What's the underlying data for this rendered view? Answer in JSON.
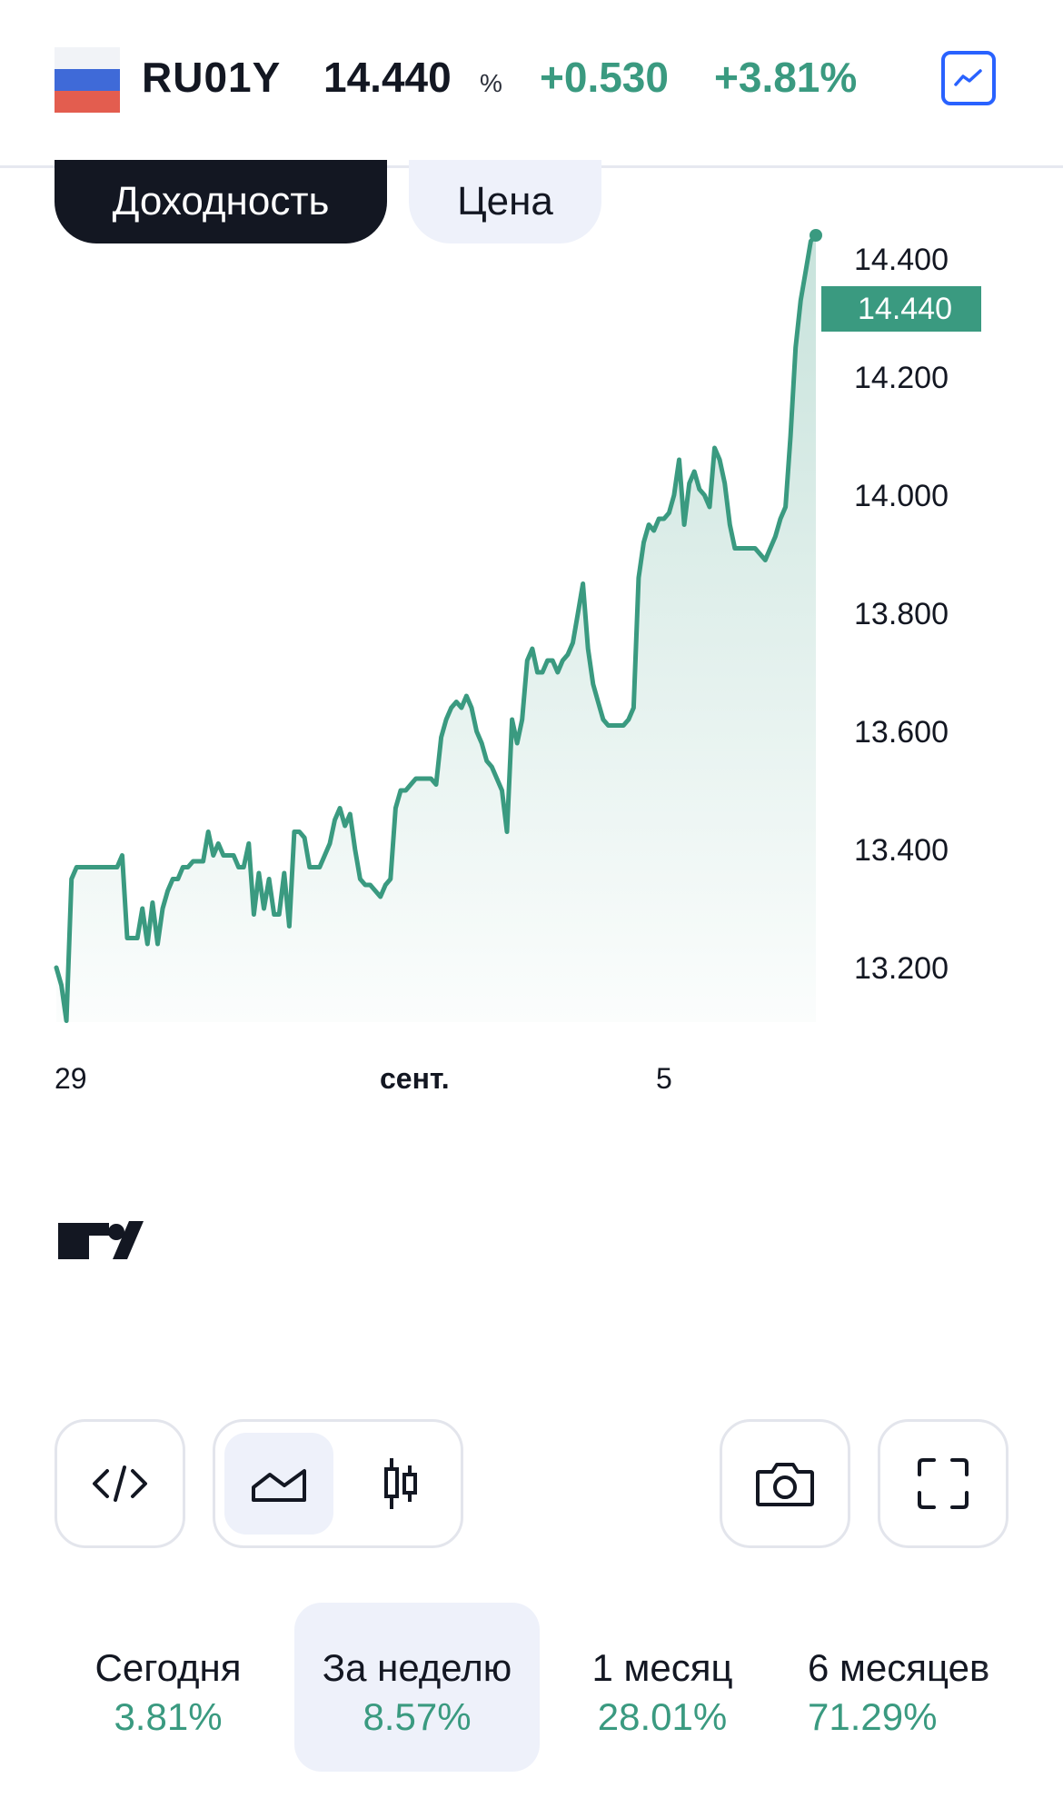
{
  "header": {
    "symbol": "RU01Y",
    "last": "14.440",
    "unit": "%",
    "change": "+0.530",
    "change_pct": "+3.81%"
  },
  "tabs": [
    {
      "label": "Доходность",
      "active": true
    },
    {
      "label": "Цена",
      "active": false
    }
  ],
  "chart_data": {
    "type": "area",
    "x_ticks": [
      "29",
      "сент.",
      "5"
    ],
    "y_ticks": [
      "13.200",
      "13.400",
      "13.600",
      "13.800",
      "14.000",
      "14.200",
      "14.400"
    ],
    "last_value_label": "14.440",
    "ylim": [
      13.06,
      14.48
    ],
    "line_color": "#3a9a80",
    "values": [
      13.2,
      13.17,
      13.11,
      13.35,
      13.37,
      13.37,
      13.37,
      13.37,
      13.37,
      13.37,
      13.37,
      13.37,
      13.37,
      13.39,
      13.25,
      13.25,
      13.25,
      13.3,
      13.24,
      13.31,
      13.24,
      13.3,
      13.33,
      13.35,
      13.35,
      13.37,
      13.37,
      13.38,
      13.38,
      13.38,
      13.43,
      13.39,
      13.41,
      13.39,
      13.39,
      13.39,
      13.37,
      13.37,
      13.41,
      13.29,
      13.36,
      13.3,
      13.35,
      13.29,
      13.29,
      13.36,
      13.27,
      13.43,
      13.43,
      13.42,
      13.37,
      13.37,
      13.37,
      13.39,
      13.41,
      13.45,
      13.47,
      13.44,
      13.46,
      13.4,
      13.35,
      13.34,
      13.34,
      13.33,
      13.32,
      13.34,
      13.35,
      13.47,
      13.5,
      13.5,
      13.51,
      13.52,
      13.52,
      13.52,
      13.52,
      13.51,
      13.59,
      13.62,
      13.64,
      13.65,
      13.64,
      13.66,
      13.64,
      13.6,
      13.58,
      13.55,
      13.54,
      13.52,
      13.5,
      13.43,
      13.62,
      13.58,
      13.62,
      13.72,
      13.74,
      13.7,
      13.7,
      13.72,
      13.72,
      13.7,
      13.72,
      13.73,
      13.75,
      13.8,
      13.85,
      13.74,
      13.68,
      13.65,
      13.62,
      13.61,
      13.61,
      13.61,
      13.61,
      13.62,
      13.64,
      13.86,
      13.92,
      13.95,
      13.94,
      13.96,
      13.96,
      13.97,
      14.0,
      14.06,
      13.95,
      14.02,
      14.04,
      14.01,
      14.0,
      13.98,
      14.08,
      14.06,
      14.02,
      13.95,
      13.91,
      13.91,
      13.91,
      13.91,
      13.91,
      13.9,
      13.89,
      13.91,
      13.93,
      13.96,
      13.98,
      14.1,
      14.25,
      14.33,
      14.38,
      14.43,
      14.44
    ]
  },
  "toolbar": {
    "embed_icon": "code-icon",
    "area_icon": "area-chart-icon",
    "candle_icon": "candles-icon",
    "screenshot_icon": "camera-icon",
    "fullscreen_icon": "fullscreen-icon",
    "accent": "#2962ff"
  },
  "periods": [
    {
      "label": "Сегодня",
      "value": "3.81%"
    },
    {
      "label": "За неделю",
      "value": "8.57%",
      "active": true
    },
    {
      "label": "1 месяц",
      "value": "28.01%"
    },
    {
      "label": "6 месяцев",
      "value": "71.29%"
    }
  ]
}
